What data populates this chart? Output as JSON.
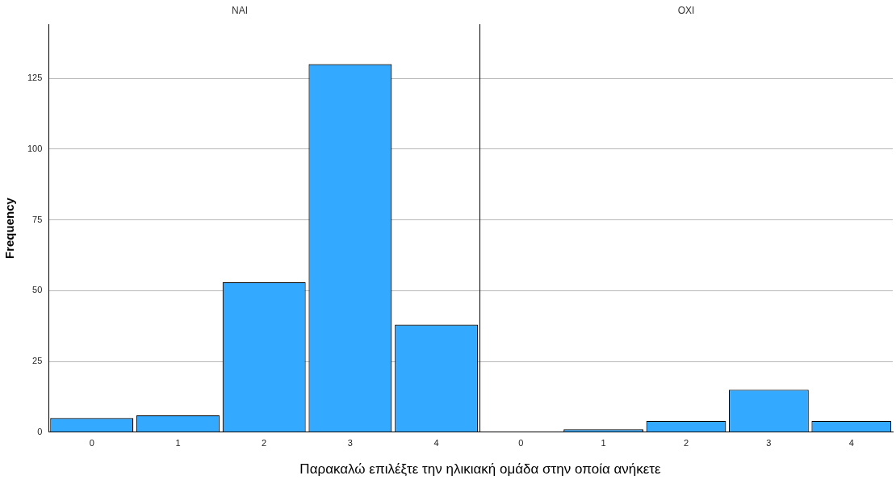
{
  "chart_data": [
    {
      "type": "bar",
      "title": "NAI",
      "ylabel": "Frequency",
      "xlabel": "Παρακαλώ επιλέξτε την ηλικιακή ομάδα στην οποία ανήκετε",
      "categories": [
        "0",
        "1",
        "2",
        "3",
        "4"
      ],
      "values": [
        5,
        6,
        53,
        130,
        38
      ],
      "color": "#33aaff",
      "ylim": [
        0,
        144
      ],
      "yticks": [
        0,
        25,
        50,
        75,
        100,
        125
      ],
      "grid": "y",
      "legend": false
    },
    {
      "type": "bar",
      "title": "OXI",
      "categories": [
        "0",
        "1",
        "2",
        "3",
        "4"
      ],
      "values": [
        0,
        1,
        4,
        15,
        4
      ],
      "color": "#33aaff",
      "ylim": [
        0,
        144
      ],
      "yticks": [
        0,
        25,
        50,
        75,
        100,
        125
      ],
      "grid": "y",
      "legend": false,
      "tick_labels": "x"
    }
  ]
}
